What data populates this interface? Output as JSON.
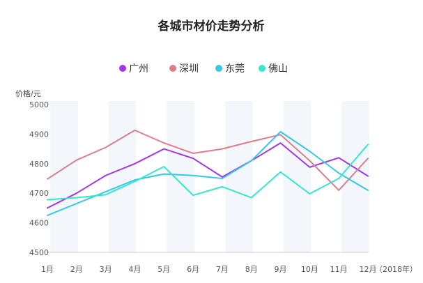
{
  "chart_data": {
    "type": "line",
    "title": "各城市材价走势分析",
    "ylabel": "价格/元",
    "xunit": "（2018年）",
    "categories": [
      "1月",
      "2月",
      "3月",
      "4月",
      "5月",
      "6月",
      "7月",
      "8月",
      "9月",
      "10月",
      "11月",
      "12月"
    ],
    "ylim": [
      4500,
      5000
    ],
    "yticks": [
      4500,
      4600,
      4700,
      4800,
      4900,
      5000
    ],
    "grid": "alternating vertical bands",
    "legend_position": "top-center",
    "series": [
      {
        "name": "广州",
        "color": "#a335e8",
        "values": [
          4650,
          4700,
          4760,
          4800,
          4850,
          4818,
          4755,
          4810,
          4870,
          4788,
          4820,
          4758
        ]
      },
      {
        "name": "深圳",
        "color": "#e07c8a",
        "values": [
          4748,
          4812,
          4855,
          4913,
          4870,
          4835,
          4850,
          4875,
          4898,
          4810,
          4710,
          4818
        ]
      },
      {
        "name": "东莞",
        "color": "#35c8e6",
        "values": [
          4625,
          4665,
          4705,
          4745,
          4765,
          4760,
          4750,
          4810,
          4908,
          4842,
          4768,
          4710
        ]
      },
      {
        "name": "佛山",
        "color": "#35e6cc",
        "values": [
          4678,
          4685,
          4695,
          4740,
          4790,
          4693,
          4722,
          4685,
          4772,
          4698,
          4750,
          4865
        ]
      }
    ]
  }
}
